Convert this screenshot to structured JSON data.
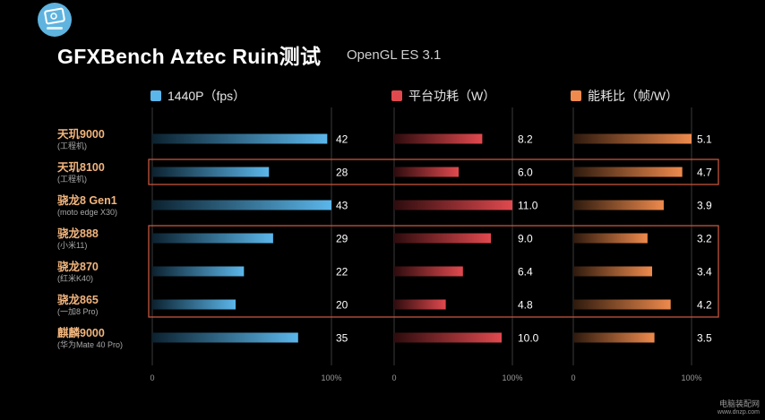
{
  "title": "GFXBench Aztec Ruin测试",
  "subtitle": "OpenGL ES 3.1",
  "colors": {
    "fps": "#5bb6ea",
    "power": "#e0494e",
    "eff": "#ee8a4d",
    "highlight": "#c4553c",
    "label_orange": "#f2b57e"
  },
  "watermark": {
    "line1": "电脑装配网",
    "line2": "www.dnzp.com"
  },
  "chart_data": {
    "type": "bar",
    "categories": [
      "天玑9000",
      "天玑8100",
      "骁龙8 Gen1",
      "骁龙888",
      "骁龙870",
      "骁龙865",
      "麒麟9000"
    ],
    "category_notes": [
      "(工程机)",
      "(工程机)",
      "(moto edge X30)",
      "(小米11)",
      "(红米K40)",
      "(一加8 Pro)",
      "(华为Mate 40 Pro)"
    ],
    "series": [
      {
        "name": "1440P（fps）",
        "values": [
          42,
          28,
          43,
          29,
          22,
          20,
          35
        ],
        "labels": [
          "42",
          "28",
          "43",
          "29",
          "22",
          "20",
          "35"
        ],
        "max": 43
      },
      {
        "name": "平台功耗（W）",
        "values": [
          8.2,
          6.0,
          11.0,
          9.0,
          6.4,
          4.8,
          10.0
        ],
        "labels": [
          "8.2",
          "6.0",
          "11.0",
          "9.0",
          "6.4",
          "4.8",
          "10.0"
        ],
        "max": 11.0
      },
      {
        "name": "能耗比（帧/W）",
        "values": [
          5.1,
          4.7,
          3.9,
          3.2,
          3.4,
          4.2,
          3.5
        ],
        "labels": [
          "5.1",
          "4.7",
          "3.9",
          "3.2",
          "3.4",
          "4.2",
          "3.5"
        ],
        "max": 5.1
      }
    ],
    "axis_start_label": "0",
    "axis_end_label": "100%",
    "highlight_groups": [
      [
        1
      ],
      [
        3,
        4,
        5
      ]
    ],
    "grid": false
  }
}
